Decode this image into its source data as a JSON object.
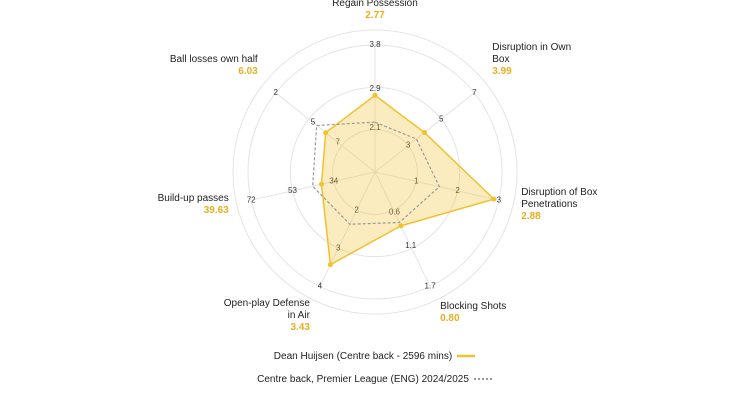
{
  "chart_data": {
    "type": "radar",
    "axes": [
      {
        "name": "Regain Possession",
        "ticks": [
          2.1,
          2.9,
          3.8
        ],
        "lim": [
          1.2,
          3.8
        ]
      },
      {
        "name": "Disruption in Own Box",
        "ticks": [
          3,
          5,
          7
        ],
        "lim": [
          1,
          7
        ]
      },
      {
        "name": "Disruption of Box Penetrations",
        "ticks": [
          1,
          2,
          3
        ],
        "lim": [
          0,
          3
        ]
      },
      {
        "name": "Blocking Shots",
        "ticks": [
          0.6,
          1.1,
          1.7
        ],
        "lim": [
          0,
          1.7
        ]
      },
      {
        "name": "Open-play Defense in Air",
        "ticks": [
          2,
          3,
          4
        ],
        "lim": [
          1,
          4
        ]
      },
      {
        "name": "Build-up passes",
        "ticks": [
          34,
          53,
          72
        ],
        "lim": [
          15,
          72
        ]
      },
      {
        "name": "Ball losses own half",
        "ticks": [
          7,
          5,
          2
        ],
        "lim": [
          10,
          2
        ]
      }
    ],
    "series": [
      {
        "name": "Dean Huijsen (Centre back - 2596 mins)",
        "color": "#f2c12e",
        "values": [
          2.77,
          3.99,
          2.88,
          0.8,
          3.43,
          39.63,
          6.03
        ],
        "value_labels": [
          "2.77",
          "3.99",
          "2.88",
          "0.80",
          "3.43",
          "39.63",
          "6.03"
        ]
      },
      {
        "name": "Centre back, Premier League (ENG) 2024/2025",
        "color": "#999999",
        "values": [
          2.22,
          3.5,
          1.56,
          0.75,
          2.37,
          43.7,
          5.3
        ]
      }
    ]
  }
}
